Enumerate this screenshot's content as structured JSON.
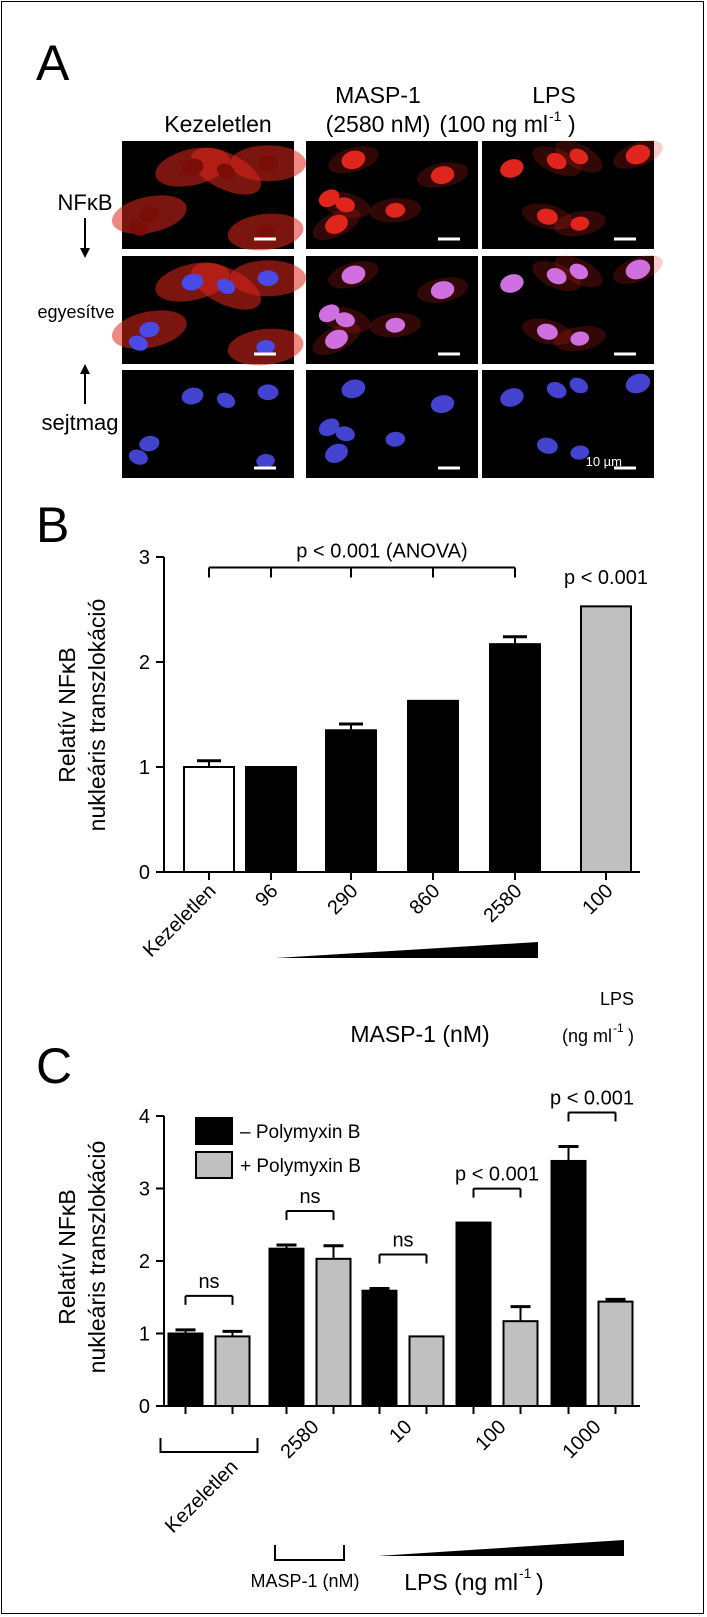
{
  "panel_a": {
    "label": "A",
    "columns": [
      "Kezeletlen",
      "MASP-1",
      "LPS"
    ],
    "column_sub": [
      "",
      "(2580 nM)",
      "(100 ng ml"
    ],
    "column_sub_sup": [
      "",
      "",
      "-1"
    ],
    "column_sub_close": [
      "",
      "",
      ")"
    ],
    "rows": [
      "NFκB",
      "egyesítve",
      "sejtmag"
    ],
    "scale_bar": "10 µm",
    "colors": {
      "nfkb": "#e0261c",
      "nucleus": "#4a4ae6",
      "merged_nucleus": "#d070e0",
      "background": "#000000"
    }
  },
  "chart_data": [
    {
      "panel": "B",
      "type": "bar",
      "ylabel_line1": "Relatív  NFκB",
      "ylabel_line2": "nukleáris transzlokáció",
      "ylim": [
        0,
        3
      ],
      "yticks": [
        0,
        1,
        2,
        3
      ],
      "categories": [
        "Kezeletlen",
        "96",
        "290",
        "860",
        "2580",
        "100"
      ],
      "values": [
        1.0,
        1.0,
        1.35,
        1.63,
        2.17,
        2.53
      ],
      "errors": [
        0.06,
        0.0,
        0.06,
        0.0,
        0.07,
        0.0
      ],
      "bar_colors": [
        "#ffffff",
        "#000000",
        "#000000",
        "#000000",
        "#000000",
        "#c0c0c0"
      ],
      "annotations": [
        {
          "text": "p < 0.001 (ANOVA)",
          "from": 0,
          "to": 4
        },
        {
          "text": "p < 0.001",
          "on": 5
        }
      ],
      "group_label_masp": "MASP-1 (nM)",
      "group_label_lps": "LPS",
      "group_label_lps_unit": "(ng ml",
      "group_label_lps_sup": "-1",
      "group_label_lps_close": ")",
      "grid": false
    },
    {
      "panel": "C",
      "type": "bar",
      "ylabel_line1": "Relatív  NFκB",
      "ylabel_line2": "nukleáris transzlokáció",
      "ylim": [
        0,
        4
      ],
      "yticks": [
        0,
        1,
        2,
        3,
        4
      ],
      "categories": [
        "Kezeletlen",
        "2580",
        "10",
        "100",
        "1000"
      ],
      "series": [
        {
          "name": "– Polymyxin B",
          "color": "#000000",
          "values": [
            1.0,
            2.17,
            1.59,
            2.53,
            3.38
          ],
          "errors": [
            0.05,
            0.05,
            0.03,
            0.0,
            0.2
          ]
        },
        {
          "name": "+ Polymyxin B",
          "color": "#c0c0c0",
          "values": [
            0.96,
            2.03,
            0.96,
            1.17,
            1.44
          ],
          "errors": [
            0.07,
            0.18,
            0.0,
            0.2,
            0.03
          ]
        }
      ],
      "annotations": [
        "ns",
        "ns",
        "ns",
        "p < 0.001",
        "p < 0.001"
      ],
      "legend_position": "top-left",
      "group_label_masp": "MASP-1 (nM)",
      "group_label_lps": "LPS (ng ml",
      "group_label_lps_sup": "-1",
      "group_label_lps_close": ")",
      "grid": false
    }
  ]
}
